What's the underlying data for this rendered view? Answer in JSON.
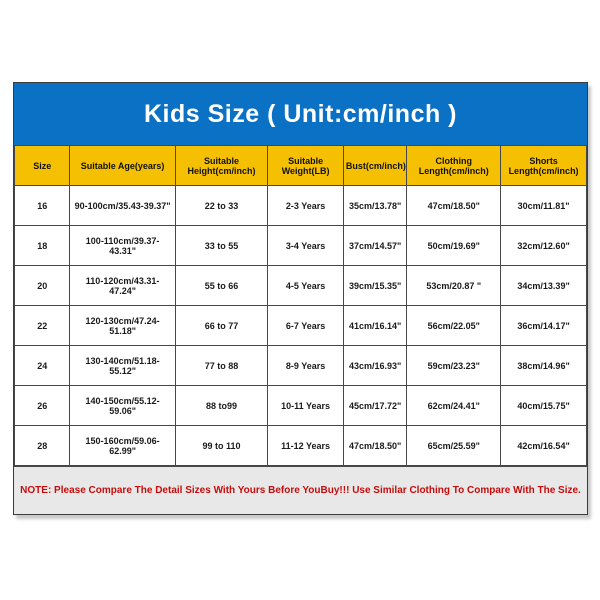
{
  "title": "Kids Size ( Unit:cm/inch )",
  "note": "NOTE: Please Compare The Detail Sizes With Yours Before YouBuy!!! Use Similar Clothing To Compare With The Size.",
  "colors": {
    "title_bg": "#0a71c4",
    "title_text": "#ffffff",
    "header_bg": "#f5c002",
    "grid_line": "#474747",
    "note_bg": "#e8e8e8",
    "note_text": "#c60c0c"
  },
  "table": {
    "headers": [
      "Size",
      "Suitable Age(years)",
      "Suitable Height(cm/inch)",
      "Suitable Weight(LB)",
      "Bust(cm/inch)",
      "Clothing Length(cm/inch)",
      "Shorts Length(cm/inch)"
    ],
    "col_widths_pct": [
      9.7,
      18.4,
      16.2,
      13.2,
      11.1,
      16.4,
      15.0
    ],
    "rows": [
      [
        "16",
        "90-100cm/35.43-39.37\"",
        "22 to 33",
        "2-3 Years",
        "35cm/13.78\"",
        "47cm/18.50\"",
        "30cm/11.81\""
      ],
      [
        "18",
        "100-110cm/39.37-43.31\"",
        "33 to 55",
        "3-4 Years",
        "37cm/14.57\"",
        "50cm/19.69\"",
        "32cm/12.60\""
      ],
      [
        "20",
        "110-120cm/43.31-47.24\"",
        "55 to 66",
        "4-5 Years",
        "39cm/15.35\"",
        "53cm/20.87 \"",
        "34cm/13.39\""
      ],
      [
        "22",
        "120-130cm/47.24-51.18\"",
        "66 to 77",
        "6-7 Years",
        "41cm/16.14\"",
        "56cm/22.05\"",
        "36cm/14.17\""
      ],
      [
        "24",
        "130-140cm/51.18-55.12\"",
        "77 to 88",
        "8-9 Years",
        "43cm/16.93\"",
        "59cm/23.23\"",
        "38cm/14.96\""
      ],
      [
        "26",
        "140-150cm/55.12-59.06\"",
        "88 to99",
        "10-11 Years",
        "45cm/17.72\"",
        "62cm/24.41\"",
        "40cm/15.75\""
      ],
      [
        "28",
        "150-160cm/59.06-62.99\"",
        "99 to 110",
        "11-12 Years",
        "47cm/18.50\"",
        "65cm/25.59\"",
        "42cm/16.54\""
      ]
    ]
  }
}
